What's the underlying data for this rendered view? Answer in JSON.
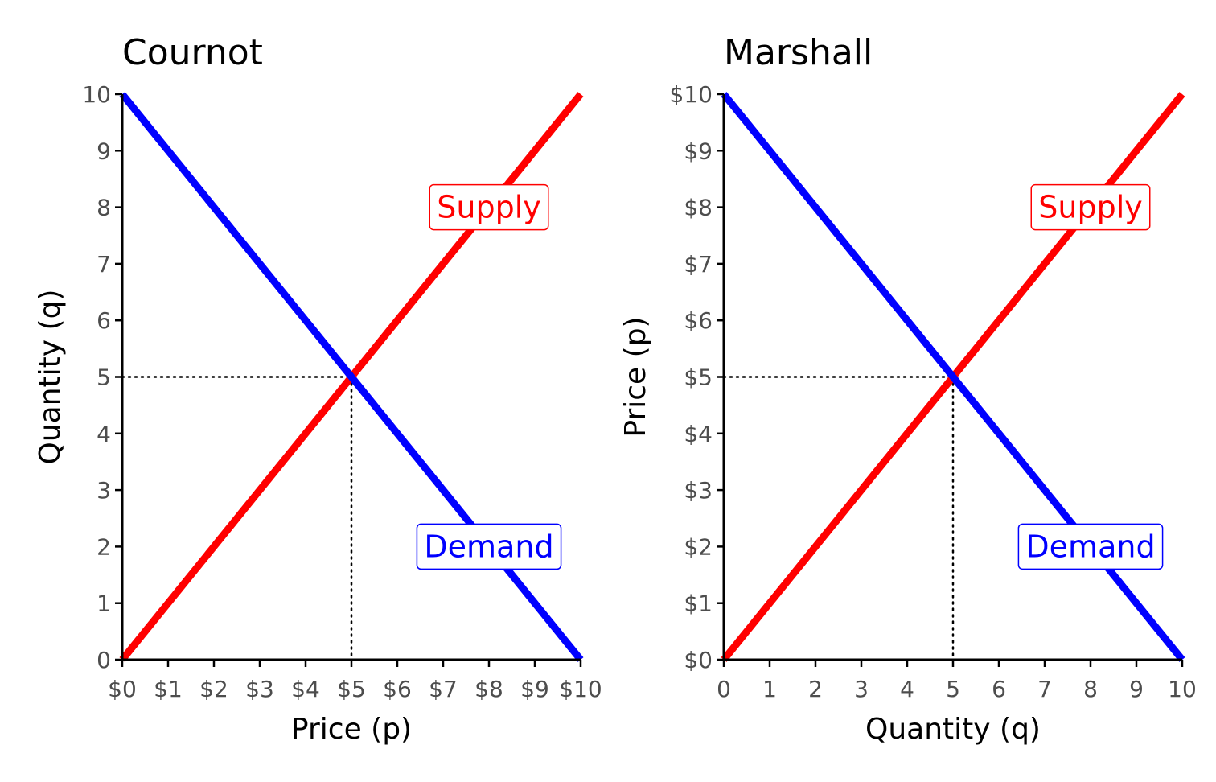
{
  "chart_data": [
    {
      "type": "line",
      "title": "Cournot",
      "xlabel": "Price (p)",
      "ylabel": "Quantity (q)",
      "xlim": [
        0,
        10
      ],
      "ylim": [
        0,
        10
      ],
      "x_ticks": [
        "$0",
        "$1",
        "$2",
        "$3",
        "$4",
        "$5",
        "$6",
        "$7",
        "$8",
        "$9",
        "$10"
      ],
      "y_ticks": [
        "0",
        "1",
        "2",
        "3",
        "4",
        "5",
        "6",
        "7",
        "8",
        "9",
        "10"
      ],
      "series": [
        {
          "name": "Supply",
          "color": "#ff0000",
          "x": [
            0,
            10
          ],
          "y": [
            0,
            10
          ],
          "label_at": [
            8,
            8
          ]
        },
        {
          "name": "Demand",
          "color": "#0000ff",
          "x": [
            0,
            10
          ],
          "y": [
            10,
            0
          ],
          "label_at": [
            8,
            2
          ]
        }
      ],
      "equilibrium": {
        "x": 5,
        "y": 5
      },
      "grid": false
    },
    {
      "type": "line",
      "title": "Marshall",
      "xlabel": "Quantity (q)",
      "ylabel": "Price (p)",
      "xlim": [
        0,
        10
      ],
      "ylim": [
        0,
        10
      ],
      "x_ticks": [
        "0",
        "1",
        "2",
        "3",
        "4",
        "5",
        "6",
        "7",
        "8",
        "9",
        "10"
      ],
      "y_ticks": [
        "$0",
        "$1",
        "$2",
        "$3",
        "$4",
        "$5",
        "$6",
        "$7",
        "$8",
        "$9",
        "$10"
      ],
      "series": [
        {
          "name": "Supply",
          "color": "#ff0000",
          "x": [
            0,
            10
          ],
          "y": [
            0,
            10
          ],
          "label_at": [
            8,
            8
          ]
        },
        {
          "name": "Demand",
          "color": "#0000ff",
          "x": [
            0,
            10
          ],
          "y": [
            10,
            0
          ],
          "label_at": [
            8,
            2
          ]
        }
      ],
      "equilibrium": {
        "x": 5,
        "y": 5
      },
      "grid": false
    }
  ]
}
